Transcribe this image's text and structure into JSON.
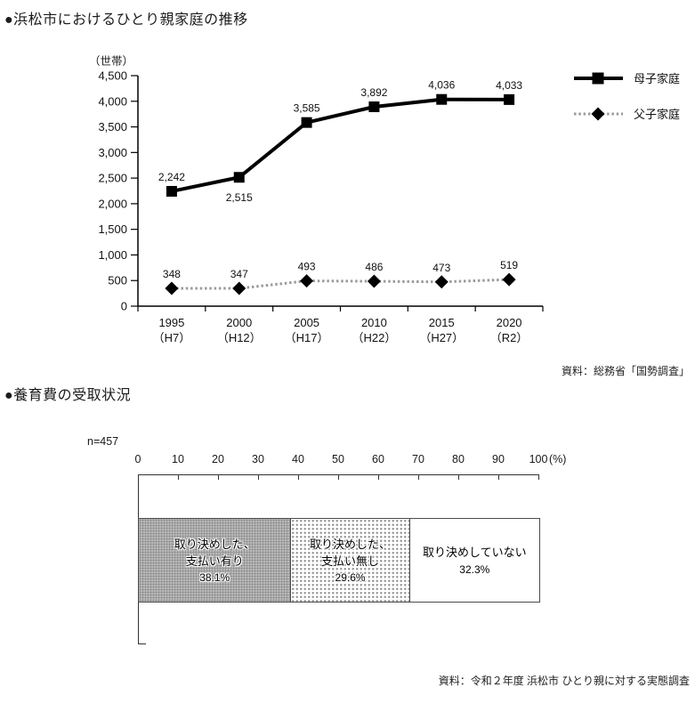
{
  "section1": {
    "title": "●浜松市におけるひとり親家庭の推移",
    "source": "資料：総務省「国勢調査」"
  },
  "section2": {
    "title": "●養育費の受取状況",
    "source": "資料：令和２年度 浜松市 ひとり親に対する実態調査"
  },
  "chart_data": [
    {
      "type": "line",
      "title": "浜松市におけるひとり親家庭の推移",
      "unit_label": "（世帯）",
      "categories": [
        "1995",
        "2000",
        "2005",
        "2010",
        "2015",
        "2020"
      ],
      "category_sub": [
        "（H7）",
        "（H12）",
        "（H17）",
        "（H22）",
        "（H27）",
        "（R2）"
      ],
      "series": [
        {
          "name": "母子家庭",
          "values": [
            2242,
            2515,
            3585,
            3892,
            4036,
            4033
          ],
          "color": "#000000",
          "marker": "square",
          "dash": "",
          "label_below": [
            1
          ]
        },
        {
          "name": "父子家庭",
          "values": [
            348,
            347,
            493,
            486,
            473,
            519
          ],
          "color": "#9b9b9b",
          "marker": "diamond",
          "dash": "2.5 2.8",
          "label_below": []
        }
      ],
      "ylim": [
        0,
        4500
      ],
      "ytick_step": 500,
      "grid": false,
      "legend_position": "right"
    },
    {
      "type": "stacked-bar-horizontal",
      "title": "養育費の受取状況",
      "n_label": "n=457",
      "axis": {
        "min": 0,
        "max": 100,
        "tick_step": 10,
        "unit": "(%)"
      },
      "segments": [
        {
          "label_lines": [
            "取り決めした、",
            "支払い有り"
          ],
          "value": 38.1,
          "pattern": "gray-dither"
        },
        {
          "label_lines": [
            "取り決めした、",
            "支払い無し"
          ],
          "value": 29.6,
          "pattern": "dot-screen"
        },
        {
          "label_lines": [
            "取り決めしていない"
          ],
          "value": 32.3,
          "pattern": "white"
        }
      ]
    }
  ]
}
